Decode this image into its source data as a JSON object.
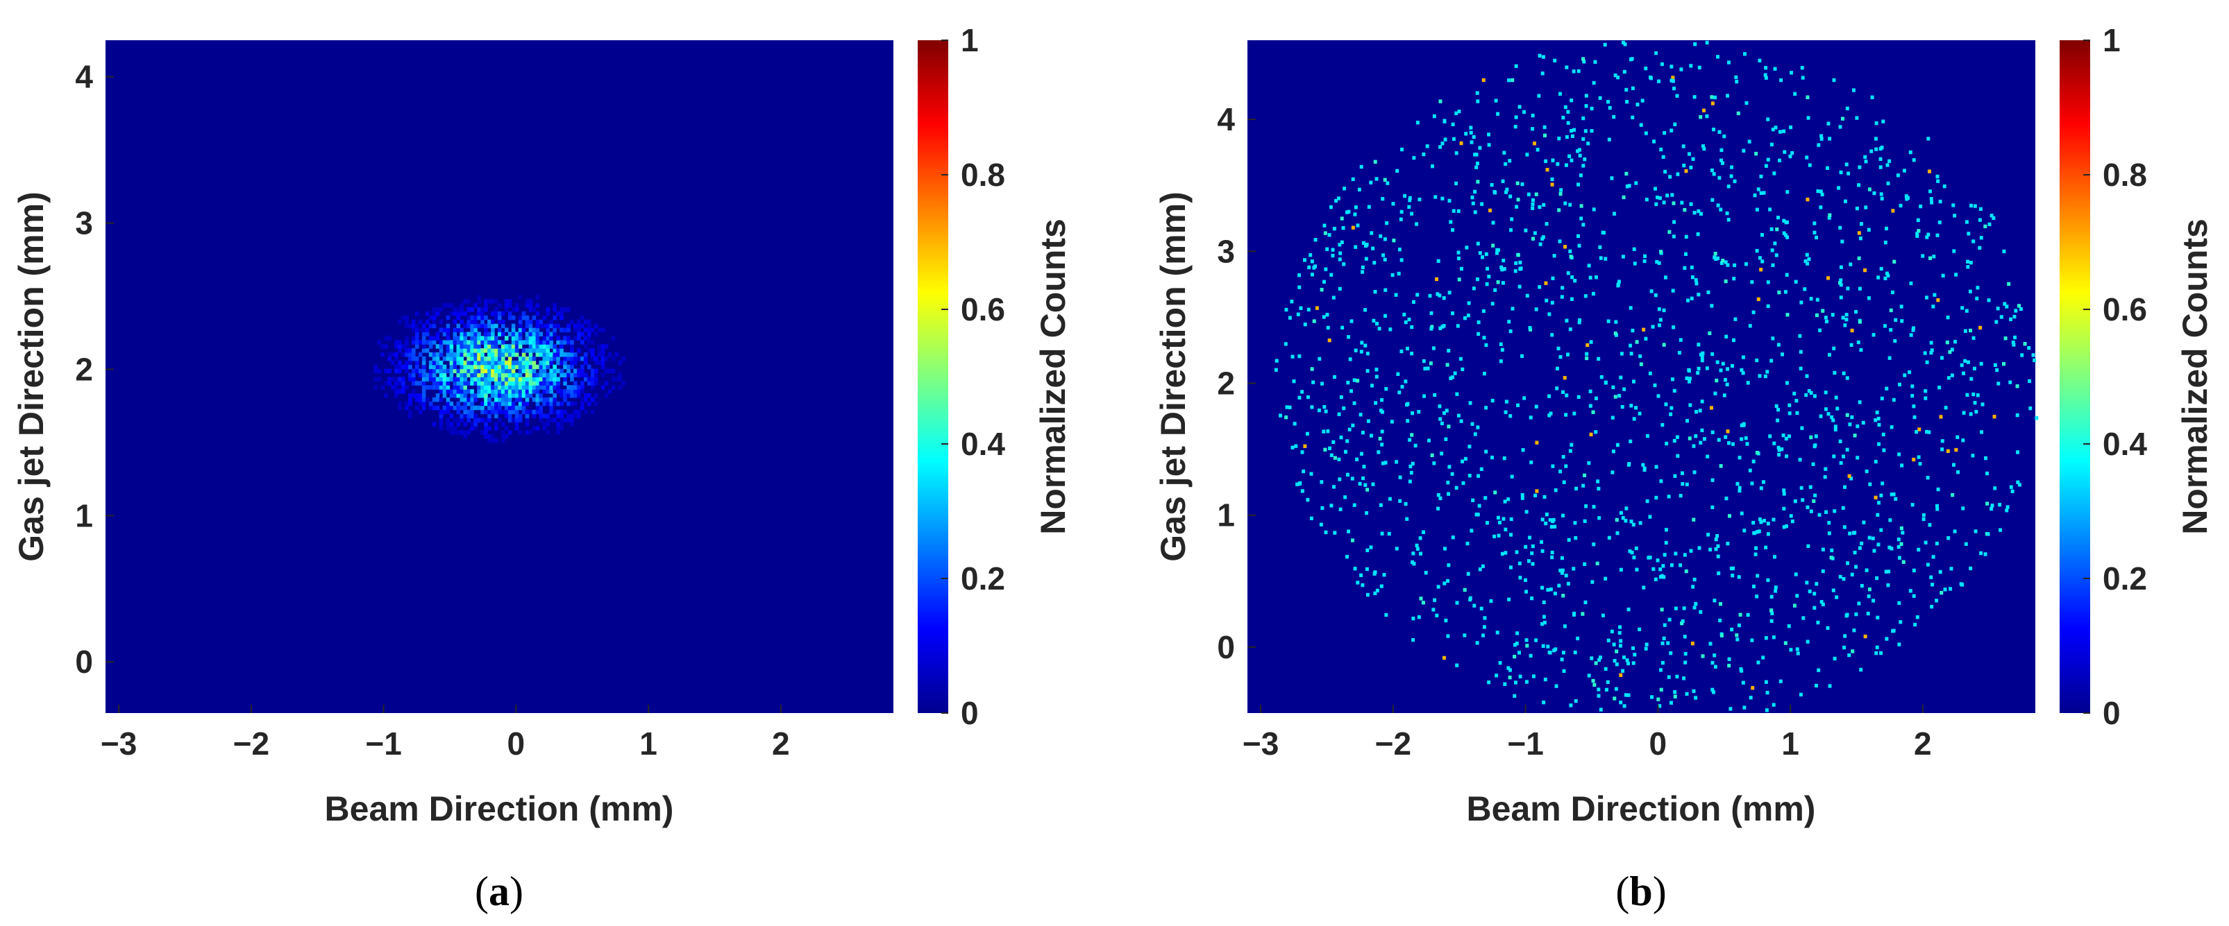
{
  "chart_data": [
    {
      "type": "heatmap",
      "panel_label": "a",
      "xlabel": "Beam Direction (mm)",
      "ylabel": "Gas jet Direction (mm)",
      "colorbar_label": "Normalized Counts",
      "colormap": "jet",
      "xlim": [
        -3.1,
        2.85
      ],
      "ylim": [
        -0.35,
        4.25
      ],
      "xticks": [
        -3,
        -2,
        -1,
        0,
        1,
        2
      ],
      "yticks": [
        0,
        1,
        2,
        3,
        4
      ],
      "clim": [
        0,
        1
      ],
      "colorbar_ticks": [
        0,
        0.2,
        0.4,
        0.6,
        0.8,
        1
      ],
      "distribution": {
        "shape": "compact elliptical cluster",
        "center": [
          -0.15,
          2.0
        ],
        "x_extent": [
          -1.1,
          0.8
        ],
        "y_extent": [
          1.5,
          2.5
        ],
        "peak_normalized_count": 0.55,
        "typical_normalized_count": 0.25
      }
    },
    {
      "type": "heatmap",
      "panel_label": "b",
      "xlabel": "Beam Direction (mm)",
      "ylabel": "Gas jet Direction (mm)",
      "colorbar_label": "Normalized Counts",
      "colormap": "jet",
      "xlim": [
        -3.1,
        2.85
      ],
      "ylim": [
        -0.5,
        4.6
      ],
      "xticks": [
        -3,
        -2,
        -1,
        0,
        1,
        2
      ],
      "yticks": [
        0,
        1,
        2,
        3,
        4
      ],
      "clim": [
        0,
        1
      ],
      "colorbar_ticks": [
        0,
        0.2,
        0.4,
        0.6,
        0.8,
        1
      ],
      "distribution": {
        "shape": "sparse scattered single-count pixels",
        "center": [
          0.0,
          2.0
        ],
        "x_extent": [
          -2.9,
          2.8
        ],
        "y_extent": [
          -0.5,
          4.6
        ],
        "typical_normalized_count": 0.35,
        "peak_normalized_count": 0.7
      }
    }
  ],
  "captions": [
    {
      "open": "(",
      "letter": "a",
      "close": ")"
    },
    {
      "open": "(",
      "letter": "b",
      "close": ")"
    }
  ]
}
